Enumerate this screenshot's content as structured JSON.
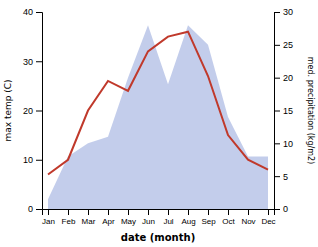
{
  "chart_data": {
    "type": "line",
    "xlabel": "date (month)",
    "ylabel": "max temp (C)",
    "y2label": "med. precipitation (kg/m2)",
    "categories": [
      "Jan",
      "Feb",
      "Mar",
      "Apr",
      "May",
      "Jun",
      "Jul",
      "Aug",
      "Sep",
      "Oct",
      "Nov",
      "Dec"
    ],
    "series": [
      {
        "type": "area",
        "axis": "y2",
        "color": "#b8c4e8",
        "values": [
          1.5,
          8,
          10,
          11,
          20,
          28,
          19,
          28,
          25,
          14,
          8,
          8
        ]
      },
      {
        "type": "line",
        "color": "#c0392b",
        "values": [
          7,
          10,
          20,
          26,
          24,
          32,
          35,
          36,
          27,
          15,
          10,
          8
        ]
      }
    ],
    "ylim": [
      0,
      40
    ],
    "yticks": [
      0,
      10,
      20,
      30,
      40
    ],
    "y2lim": [
      0,
      30
    ],
    "y2ticks": [
      0,
      5,
      10,
      15,
      20,
      25,
      30
    ],
    "grid": false
  }
}
